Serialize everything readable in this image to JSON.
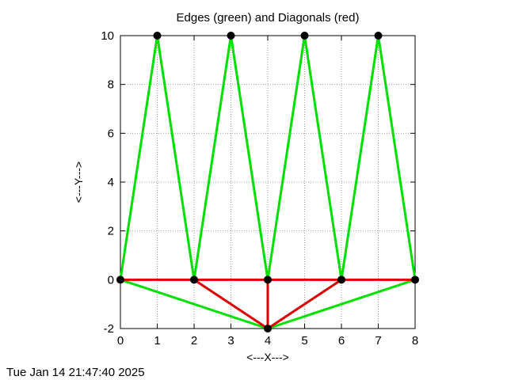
{
  "timestamp": "Tue Jan 14 21:47:40 2025",
  "chart_data": {
    "type": "line",
    "title": "Edges (green) and Diagonals (red)",
    "xlabel": "<---X--->",
    "ylabel": "<---Y--->",
    "xlim": [
      0,
      8
    ],
    "ylim": [
      -2,
      10
    ],
    "xticks": [
      0,
      1,
      2,
      3,
      4,
      5,
      6,
      7,
      8
    ],
    "yticks": [
      -2,
      0,
      2,
      4,
      6,
      8,
      10
    ],
    "grid": true,
    "colors": {
      "edges": "#00e000",
      "diagonals": "#e00000",
      "nodes": "#000000"
    },
    "nodes": [
      {
        "x": 0,
        "y": 0
      },
      {
        "x": 1,
        "y": 10
      },
      {
        "x": 2,
        "y": 0
      },
      {
        "x": 3,
        "y": 10
      },
      {
        "x": 4,
        "y": 0
      },
      {
        "x": 5,
        "y": 10
      },
      {
        "x": 6,
        "y": 0
      },
      {
        "x": 7,
        "y": 10
      },
      {
        "x": 8,
        "y": 0
      },
      {
        "x": 4,
        "y": -2
      }
    ],
    "edges": [
      [
        [
          0,
          0
        ],
        [
          1,
          10
        ]
      ],
      [
        [
          1,
          10
        ],
        [
          2,
          0
        ]
      ],
      [
        [
          2,
          0
        ],
        [
          3,
          10
        ]
      ],
      [
        [
          3,
          10
        ],
        [
          4,
          0
        ]
      ],
      [
        [
          4,
          0
        ],
        [
          5,
          10
        ]
      ],
      [
        [
          5,
          10
        ],
        [
          6,
          0
        ]
      ],
      [
        [
          6,
          0
        ],
        [
          7,
          10
        ]
      ],
      [
        [
          7,
          10
        ],
        [
          8,
          0
        ]
      ],
      [
        [
          8,
          0
        ],
        [
          4,
          -2
        ]
      ],
      [
        [
          4,
          -2
        ],
        [
          0,
          0
        ]
      ]
    ],
    "diagonals": [
      [
        [
          0,
          0
        ],
        [
          8,
          0
        ]
      ],
      [
        [
          2,
          0
        ],
        [
          4,
          -2
        ]
      ],
      [
        [
          4,
          0
        ],
        [
          4,
          -2
        ]
      ],
      [
        [
          6,
          0
        ],
        [
          4,
          -2
        ]
      ]
    ]
  }
}
